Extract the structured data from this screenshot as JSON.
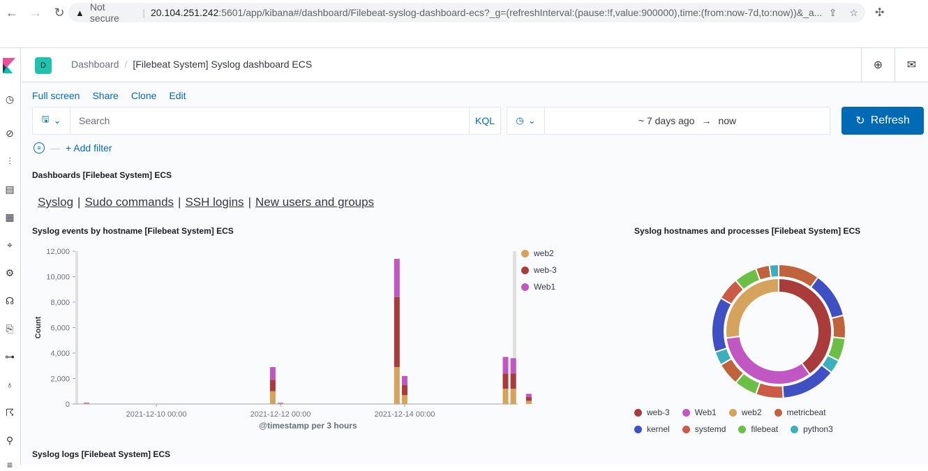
{
  "browser": {
    "not_secure": "Not secure",
    "host": "20.104.251.242",
    "path": ":5601/app/kibana#/dashboard/Filebeat-syslog-dashboard-ecs?_g=(refreshInterval:(pause:!f,value:900000),time:(from:now-7d,to:now))&_a..."
  },
  "header": {
    "avatar": "D",
    "breadcrumb_root": "Dashboard",
    "breadcrumb_current": "[Filebeat System] Syslog dashboard ECS"
  },
  "top_menu": {
    "full_screen": "Full screen",
    "share": "Share",
    "clone": "Clone",
    "edit": "Edit"
  },
  "query": {
    "placeholder": "Search",
    "language": "KQL"
  },
  "date": {
    "start": "~ 7 days ago",
    "arrow": "→",
    "end": "now"
  },
  "refresh_label": "Refresh",
  "filter": {
    "add_label": "+ Add filter"
  },
  "panels": {
    "nav_title": "Dashboards [Filebeat System] ECS",
    "links": [
      "Syslog",
      "Sudo commands",
      "SSH logins",
      "New users and groups"
    ],
    "events_title": "Syslog events by hostname [Filebeat System] ECS",
    "hosts_title": "Syslog hostnames and processes [Filebeat System] ECS",
    "logs_title": "Syslog logs [Filebeat System] ECS"
  },
  "colors": {
    "web2": "#d6a35c",
    "web-3": "#aa3b3b",
    "Web1": "#c157c3",
    "metricbeat": "#c0633c",
    "kernel": "#3f4fc4",
    "systemd": "#cb5a47",
    "filebeat": "#6cbf45",
    "python3": "#3bafbe"
  },
  "chart_data": [
    {
      "type": "bar",
      "stacked": true,
      "xlabel": "@timestamp per 3 hours",
      "ylabel": "Count",
      "ylim": [
        0,
        12000
      ],
      "yticks": [
        "0",
        "2,000",
        "4,000",
        "6,000",
        "8,000",
        "10,000",
        "12,000"
      ],
      "xticks": [
        "2021-12-10 00:00",
        "2021-12-12 00:00",
        "2021-12-14 00:00"
      ],
      "legend": [
        "web2",
        "web-3",
        "Web1"
      ],
      "bars": [
        {
          "x": "2021-12-08 21:00",
          "web2": 50,
          "web-3": 30,
          "Web1": 20
        },
        {
          "x": "2021-12-11 21:00",
          "web2": 1000,
          "web-3": 900,
          "Web1": 1000
        },
        {
          "x": "2021-12-12 00:00",
          "web2": 40,
          "web-3": 30,
          "Web1": 30
        },
        {
          "x": "2021-12-13 21:00",
          "web2": 2900,
          "web-3": 5500,
          "Web1": 3000
        },
        {
          "x": "2021-12-14 00:00",
          "web2": 700,
          "web-3": 800,
          "Web1": 700
        },
        {
          "x": "2021-12-15 15:00",
          "web2": 1200,
          "web-3": 1200,
          "Web1": 1300
        },
        {
          "x": "2021-12-15 18:00",
          "web2": 1200,
          "web-3": 1200,
          "Web1": 1200
        },
        {
          "x": "2021-12-16 00:00",
          "web2": 250,
          "web-3": 300,
          "Web1": 250
        }
      ]
    },
    {
      "type": "pie",
      "donut": true,
      "inner": [
        {
          "name": "web-3",
          "value": 40
        },
        {
          "name": "Web1",
          "value": 33
        },
        {
          "name": "web2",
          "value": 27
        }
      ],
      "outer": [
        {
          "name": "metricbeat",
          "parent": "web-3",
          "value": 9
        },
        {
          "name": "kernel",
          "parent": "web-3",
          "value": 10
        },
        {
          "name": "metricbeat",
          "parent": "web-3",
          "value": 5
        },
        {
          "name": "filebeat",
          "parent": "web-3",
          "value": 5
        },
        {
          "name": "python3",
          "parent": "web-3",
          "value": 3
        },
        {
          "name": "kernel",
          "parent": "Web1",
          "value": 12
        },
        {
          "name": "systemd",
          "parent": "Web1",
          "value": 6
        },
        {
          "name": "filebeat",
          "parent": "Web1",
          "value": 5
        },
        {
          "name": "metricbeat",
          "parent": "Web1",
          "value": 5
        },
        {
          "name": "python3",
          "parent": "Web1",
          "value": 3
        },
        {
          "name": "kernel",
          "parent": "web2",
          "value": 12
        },
        {
          "name": "systemd",
          "parent": "web2",
          "value": 5
        },
        {
          "name": "filebeat",
          "parent": "web2",
          "value": 5
        },
        {
          "name": "metricbeat",
          "parent": "web2",
          "value": 3
        },
        {
          "name": "python3",
          "parent": "web2",
          "value": 2
        }
      ],
      "legend": [
        "web-3",
        "Web1",
        "web2",
        "metricbeat",
        "kernel",
        "systemd",
        "filebeat",
        "python3"
      ]
    }
  ]
}
